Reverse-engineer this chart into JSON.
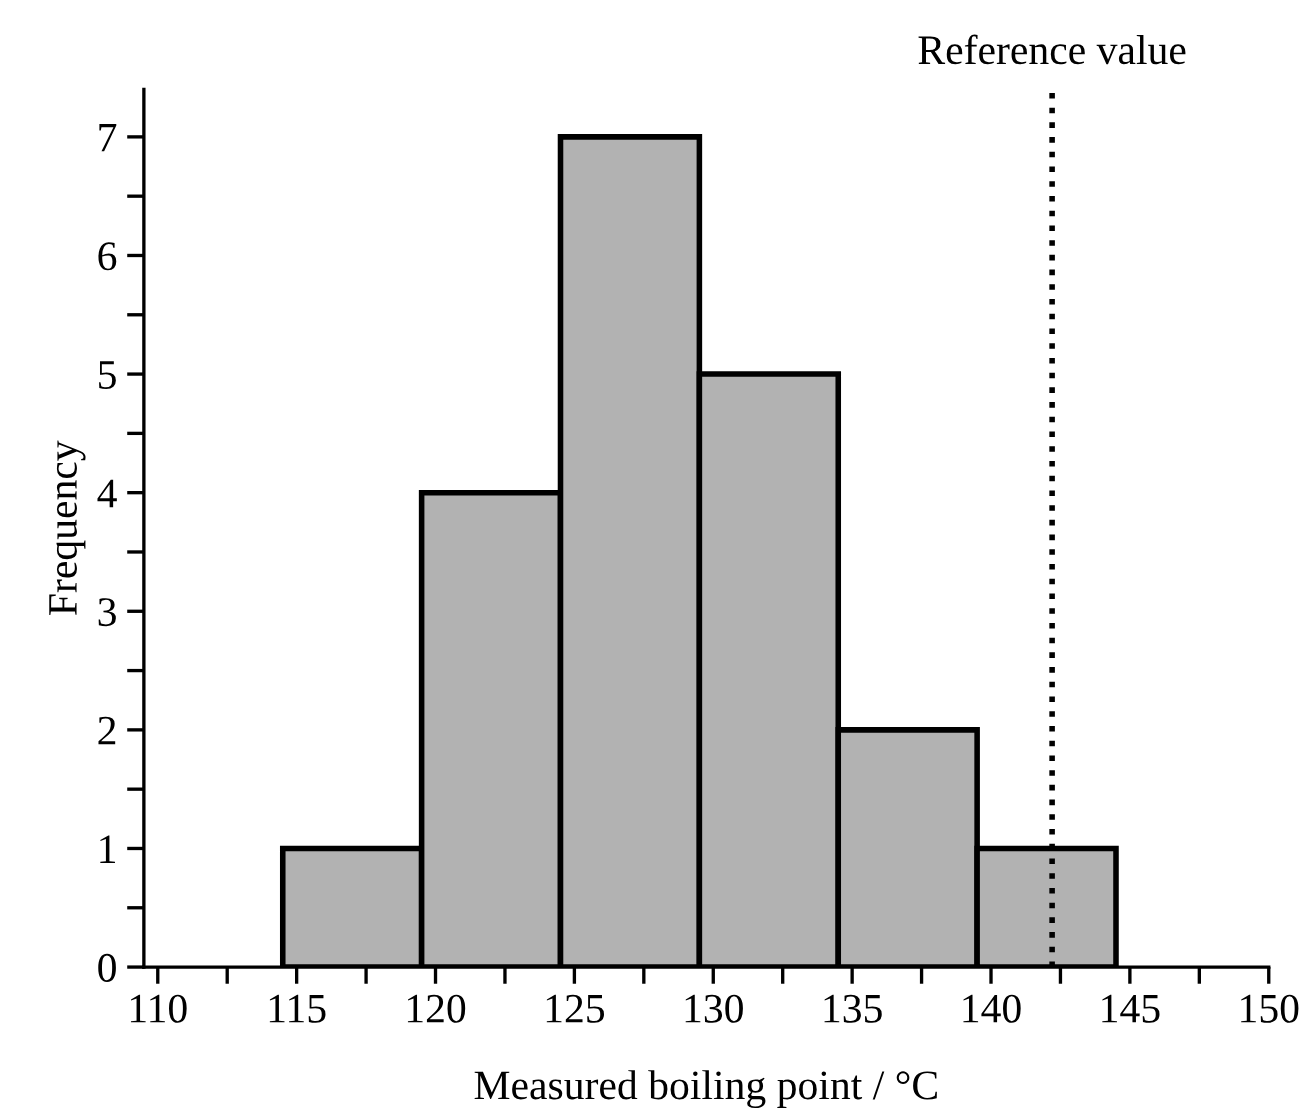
{
  "chart_data": {
    "type": "histogram",
    "xlabel": "Measured boiling point / °C",
    "ylabel": "Frequency",
    "bins": [
      114.5,
      119.5,
      124.5,
      129.5,
      134.5,
      139.5,
      144.5
    ],
    "values": [
      1,
      4,
      7,
      5,
      2,
      1
    ],
    "color": "#b2b2b2",
    "xlim": [
      109.5,
      150
    ],
    "ylim": [
      0,
      7.4
    ],
    "xticks": [
      110,
      {
        "value": 112.5,
        "label": null
      },
      115,
      {
        "value": 117.5,
        "label": null
      },
      120,
      {
        "value": 122.5,
        "label": null
      },
      125,
      {
        "value": 127.5,
        "label": null
      },
      130,
      {
        "value": 132.5,
        "label": null
      },
      135,
      {
        "value": 137.5,
        "label": null
      },
      140,
      {
        "value": 142.5,
        "label": null
      },
      145,
      {
        "value": 147.5,
        "label": null
      },
      150
    ],
    "yticks": [
      0,
      {
        "value": 0.5,
        "label": null
      },
      1,
      {
        "value": 1.5,
        "label": null
      },
      2,
      {
        "value": 2.5,
        "label": null
      },
      3,
      {
        "value": 3.5,
        "label": null
      },
      4,
      {
        "value": 4.5,
        "label": null
      },
      5,
      {
        "value": 5.5,
        "label": null
      },
      6,
      {
        "value": 6.5,
        "label": null
      },
      7
    ],
    "ref_lines": [
      {
        "axis": "x",
        "value": 142.2,
        "label": "Reference value",
        "color": "#000000",
        "line_style": "dotted"
      }
    ],
    "grid": false,
    "legend": false
  }
}
